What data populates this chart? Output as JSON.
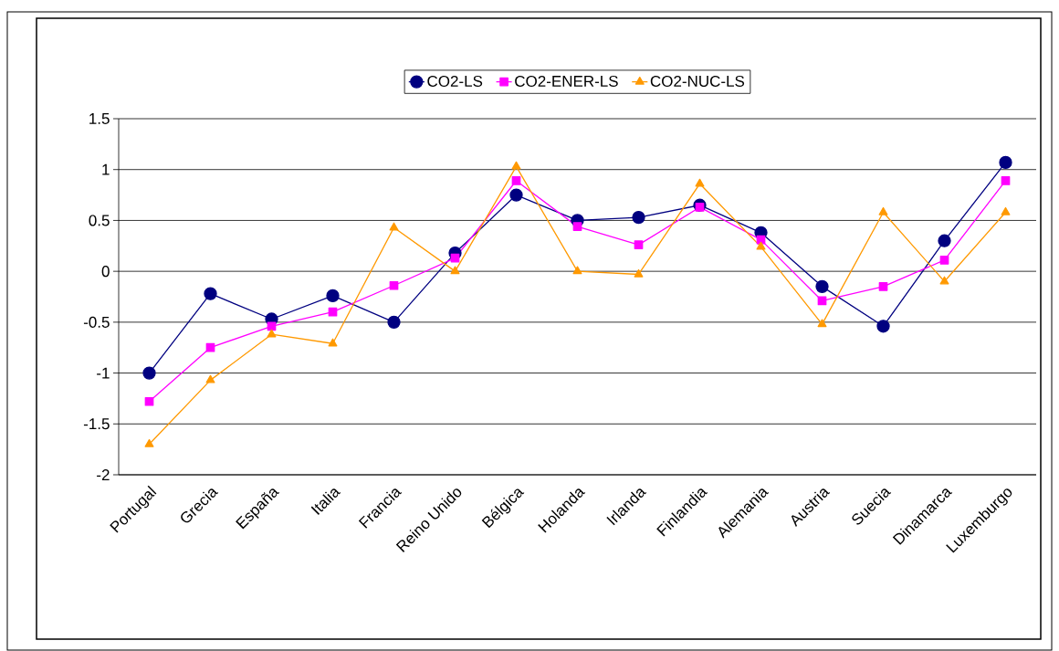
{
  "chart_data": {
    "type": "line",
    "categories": [
      "Portugal",
      "Grecia",
      "España",
      "Italia",
      "Francia",
      "Reino Unido",
      "Bélgica",
      "Holanda",
      "Irlanda",
      "Finlandia",
      "Alemania",
      "Austria",
      "Suecia",
      "Dinamarca",
      "Luxemburgo"
    ],
    "series": [
      {
        "name": "CO2-LS",
        "color": "#000080",
        "marker": "circle",
        "values": [
          -1.0,
          -0.22,
          -0.47,
          -0.24,
          -0.5,
          0.18,
          0.75,
          0.5,
          0.53,
          0.65,
          0.38,
          -0.15,
          -0.54,
          0.3,
          1.07
        ]
      },
      {
        "name": "CO2-ENER-LS",
        "color": "#ff00ff",
        "marker": "square",
        "values": [
          -1.28,
          -0.75,
          -0.54,
          -0.4,
          -0.14,
          0.13,
          0.89,
          0.44,
          0.26,
          0.63,
          0.31,
          -0.29,
          -0.15,
          0.11,
          0.89
        ]
      },
      {
        "name": "CO2-NUC-LS",
        "color": "#ff9900",
        "marker": "triangle",
        "values": [
          -1.7,
          -1.07,
          -0.62,
          -0.71,
          0.43,
          0.0,
          1.03,
          0.0,
          -0.03,
          0.86,
          0.24,
          -0.52,
          0.58,
          -0.1,
          0.58
        ]
      }
    ],
    "ylim": [
      -2,
      1.5
    ],
    "yticks": [
      -2,
      -1.5,
      -1,
      -0.5,
      0,
      0.5,
      1,
      1.5
    ],
    "grid": "y",
    "legend": "top",
    "line_style": "solid"
  }
}
